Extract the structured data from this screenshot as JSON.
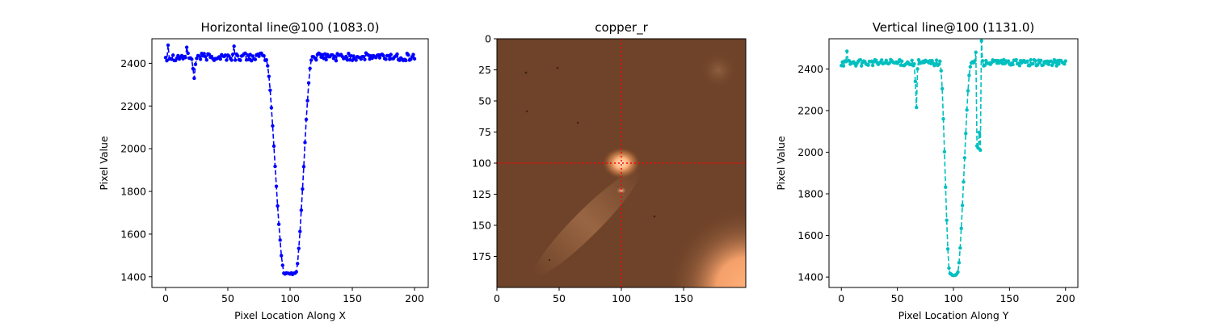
{
  "chart_data": [
    {
      "type": "line",
      "title": "Horizontal line@100 (1083.0)",
      "xlabel": "Pixel Location Along X",
      "ylabel": "Pixel Value",
      "xlim": [
        -11,
        211
      ],
      "ylim": [
        1350,
        2515
      ],
      "xticks": [
        0,
        50,
        100,
        150,
        200
      ],
      "yticks": [
        1400,
        1600,
        1800,
        2000,
        2200,
        2400
      ],
      "color": "#0000ff",
      "line_style": "dashed",
      "marker": "dot",
      "profile": {
        "baseline": 2430,
        "noise": 18,
        "dip_min": 1410,
        "dip_start": 80,
        "dip_floor": [
          96,
          104
        ],
        "dip_end": 118,
        "spikes": [
          [
            22,
            2375
          ],
          [
            23,
            2330
          ],
          [
            24,
            2395
          ],
          [
            17,
            2475
          ],
          [
            55,
            2480
          ],
          [
            2,
            2485
          ]
        ]
      }
    },
    {
      "type": "heatmap",
      "title": "copper_r",
      "colormap": "copper_r",
      "xlim": [
        0,
        199
      ],
      "ylim": [
        199,
        0
      ],
      "xticks": [
        0,
        50,
        100,
        150
      ],
      "yticks": [
        0,
        25,
        50,
        75,
        100,
        125,
        150,
        175
      ],
      "crosshair": {
        "x": 100,
        "y": 100,
        "color": "#ff0000",
        "style": "dotted"
      },
      "features": [
        {
          "kind": "bright-spot",
          "x": 100,
          "y": 100
        },
        {
          "kind": "small-bright-dot",
          "x": 100,
          "y": 122
        },
        {
          "kind": "faint-blob",
          "x": 183,
          "y": 25
        },
        {
          "kind": "diagonal-streak",
          "from": [
            45,
            155
          ],
          "to": [
            5,
            195
          ]
        },
        {
          "kind": "bright-corner",
          "x": 199,
          "y": 199
        }
      ]
    },
    {
      "type": "line",
      "title": "Vertical line@100 (1131.0)",
      "xlabel": "Pixel Location Along Y",
      "ylabel": "Pixel Value",
      "xlim": [
        -11,
        211
      ],
      "ylim": [
        1350,
        2545
      ],
      "xticks": [
        0,
        50,
        100,
        150,
        200
      ],
      "yticks": [
        1400,
        1600,
        1800,
        2000,
        2200,
        2400
      ],
      "color": "#00bfbf",
      "line_style": "dashed",
      "marker": "dot",
      "profile": {
        "baseline": 2430,
        "noise": 15,
        "dip_min": 1405,
        "dip_start": 88,
        "dip_floor": [
          97,
          103
        ],
        "dip_end": 116,
        "spikes": [
          [
            66,
            2340
          ],
          [
            67,
            2215
          ],
          [
            68,
            2400
          ],
          [
            120,
            2480
          ],
          [
            121,
            2030
          ],
          [
            122,
            2020
          ],
          [
            123,
            2095
          ],
          [
            124,
            2010
          ],
          [
            125,
            2535
          ],
          [
            5,
            2485
          ]
        ]
      }
    }
  ]
}
